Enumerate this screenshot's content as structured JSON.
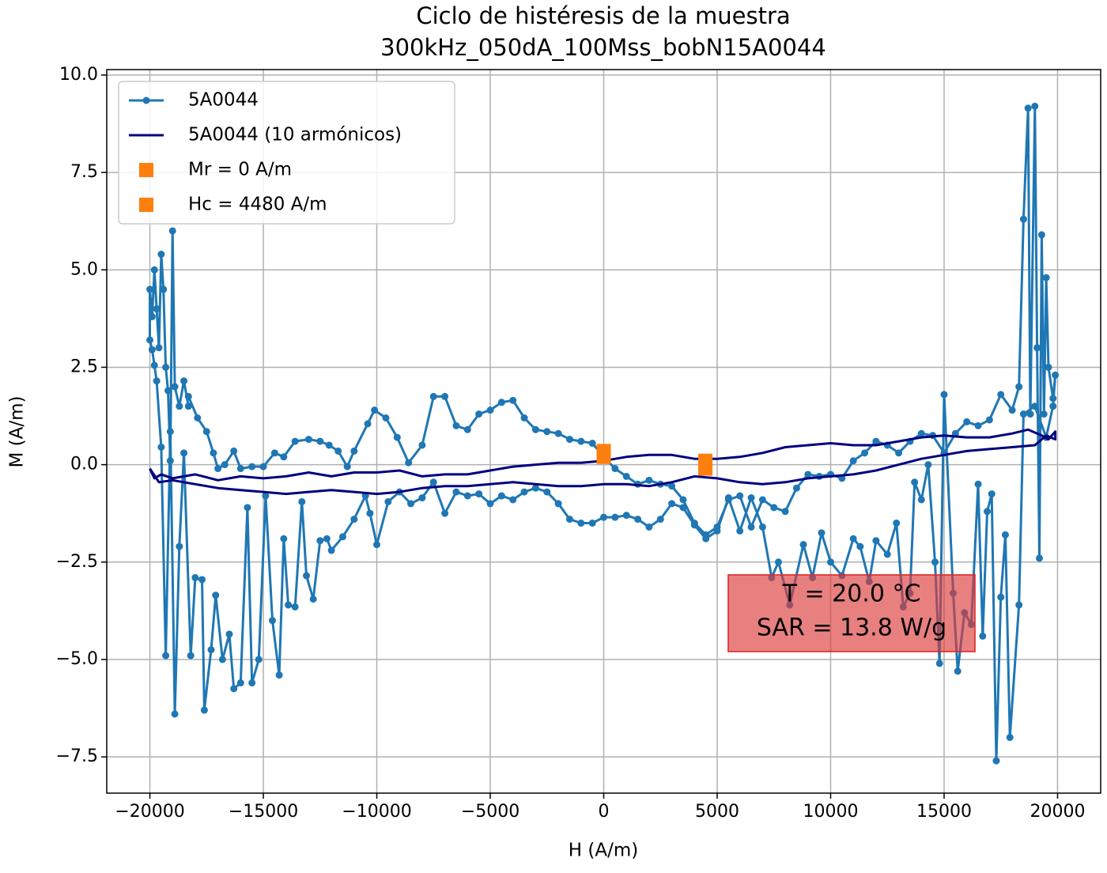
{
  "chart_data": {
    "type": "line",
    "title": "Ciclo de histéresis de la muestra",
    "subtitle": "300kHz_050dA_100Mss_bobN15A0044",
    "xlabel": "H (A/m)",
    "ylabel": "M (A/m)",
    "xlim": [
      -21900,
      21900
    ],
    "ylim": [
      -8.43,
      10.14
    ],
    "xticks": [
      {
        "value": -20000,
        "label": "−20000"
      },
      {
        "value": -15000,
        "label": "−15000"
      },
      {
        "value": -10000,
        "label": "−10000"
      },
      {
        "value": -5000,
        "label": "−5000"
      },
      0,
      5000,
      10000,
      15000,
      20000
    ],
    "yticks": [
      {
        "value": -7.5,
        "label": "−7.5"
      },
      {
        "value": -5,
        "label": "−5.0"
      },
      {
        "value": -2.5,
        "label": "−2.5"
      },
      {
        "value": 0,
        "label": "0.0"
      },
      {
        "value": 2.5,
        "label": "2.5"
      },
      {
        "value": 5,
        "label": "5.0"
      },
      {
        "value": 7.5,
        "label": "7.5"
      },
      {
        "value": 10,
        "label": "10.0"
      }
    ],
    "grid": true,
    "legend": "upper left",
    "annotations": [
      "T = 20.0 °C",
      "SAR = 13.8 W/g"
    ],
    "series": [
      {
        "name": "5A0044",
        "color": "#1f77b4",
        "style": "line-marker",
        "x": [
          -18300,
          -17900,
          -17500,
          -17200,
          -17000,
          -16700,
          -16300,
          -16000,
          -15500,
          -15000,
          -14500,
          -14100,
          -13600,
          -13000,
          -12500,
          -12100,
          -11700,
          -11300,
          -11000,
          -10400,
          -10100,
          -9600,
          -9100,
          -8600,
          -8000,
          -7500,
          -7000,
          -6500,
          -6000,
          -5500,
          -5000,
          -4500,
          -4000,
          -3500,
          -3000,
          -2500,
          -2000,
          -1500,
          -1000,
          -500,
          0,
          500,
          1000,
          1500,
          2000,
          2500,
          3000,
          3500,
          4000,
          4500,
          5000,
          5500,
          6000,
          6500,
          7000,
          7500,
          8000,
          8500,
          9000,
          9500,
          10000,
          10500,
          11000,
          11500,
          12000,
          12500,
          13000,
          13500,
          14000,
          14500,
          15000,
          15500,
          16000,
          16500,
          17000,
          17500,
          18000,
          18300,
          18500,
          18700,
          18800,
          19000,
          19100,
          19200,
          19300,
          19400,
          19500,
          19600,
          19800,
          19900,
          19800,
          19500,
          19000,
          18500,
          18300,
          17900,
          17700,
          17500,
          17300,
          17100,
          16900,
          16700,
          16500,
          16200,
          15900,
          15600,
          15400,
          15000,
          14800,
          14600,
          14300,
          14000,
          13700,
          13500,
          13200,
          12900,
          12500,
          12000,
          11700,
          11300,
          11000,
          10500,
          10000,
          9600,
          9200,
          8800,
          8200,
          7700,
          7400,
          7000,
          6500,
          6000,
          5500,
          5000,
          4500,
          4000,
          3500,
          3000,
          2500,
          2000,
          1500,
          1000,
          500,
          0,
          -500,
          -1000,
          -1500,
          -2000,
          -2500,
          -3000,
          -3500,
          -4000,
          -4500,
          -5000,
          -5500,
          -6000,
          -6500,
          -7000,
          -7500,
          -8000,
          -8500,
          -9000,
          -9500,
          -10000,
          -10300,
          -10500,
          -11000,
          -11500,
          -12000,
          -12200,
          -12500,
          -12800,
          -13100,
          -13300,
          -13600,
          -13900,
          -14100,
          -14300,
          -14600,
          -14900,
          -15200,
          -15500,
          -15700,
          -16000,
          -16300,
          -16500,
          -16800,
          -17100,
          -17300,
          -17600,
          -17700,
          -18000,
          -18200,
          -18500,
          -18700,
          -18900,
          -19100,
          -19300,
          -19500,
          -19700,
          -19800,
          -19900,
          -20000,
          -20000,
          -19900,
          -19800,
          -19700,
          -19600,
          -19500,
          -19400,
          -19300,
          -19200,
          -19100,
          -19000,
          -18900,
          -18700,
          -18500,
          -18300
        ],
        "values": [
          1.75,
          1.2,
          0.85,
          0.3,
          -0.1,
          0.0,
          0.35,
          -0.1,
          -0.05,
          -0.05,
          0.3,
          0.2,
          0.6,
          0.65,
          0.6,
          0.5,
          0.35,
          -0.05,
          0.35,
          1.05,
          1.4,
          1.2,
          0.7,
          0.05,
          0.5,
          1.75,
          1.75,
          1.0,
          0.9,
          1.3,
          1.4,
          1.6,
          1.65,
          1.2,
          0.9,
          0.85,
          0.8,
          0.65,
          0.6,
          0.55,
          0.2,
          -0.1,
          -0.3,
          -0.5,
          -0.4,
          -0.5,
          -0.55,
          -0.9,
          -1.5,
          -1.8,
          -1.6,
          -0.9,
          -0.8,
          -1.6,
          -0.9,
          -1.1,
          -1.2,
          -0.6,
          -0.25,
          -0.3,
          -0.25,
          -0.35,
          0.1,
          0.3,
          0.6,
          0.5,
          0.3,
          0.6,
          0.8,
          0.75,
          0.3,
          0.8,
          1.1,
          1.0,
          1.15,
          1.8,
          1.4,
          2.0,
          6.3,
          9.15,
          1.3,
          9.2,
          3.0,
          -2.4,
          5.9,
          1.3,
          4.8,
          2.5,
          1.7,
          2.3,
          1.5,
          0.7,
          1.5,
          1.3,
          -3.6,
          -7.0,
          -1.8,
          -3.4,
          -7.6,
          -0.75,
          -1.2,
          -4.4,
          -0.5,
          -4.1,
          -3.8,
          -5.3,
          -3.3,
          1.8,
          -5.1,
          -2.5,
          0.0,
          -0.9,
          -0.45,
          -3.3,
          -3.65,
          -1.5,
          -2.3,
          -1.95,
          -3.0,
          -2.1,
          -1.9,
          -2.85,
          -2.5,
          -1.75,
          -2.9,
          -2.05,
          -3.6,
          -2.5,
          -2.9,
          -1.6,
          -0.85,
          -1.7,
          -0.85,
          -1.7,
          -1.9,
          -1.55,
          -1.1,
          -1.0,
          -1.4,
          -1.6,
          -1.4,
          -1.3,
          -1.35,
          -1.35,
          -1.5,
          -1.5,
          -1.4,
          -1.0,
          -0.7,
          -0.6,
          -0.7,
          -0.9,
          -0.8,
          -1.0,
          -0.75,
          -0.8,
          -0.7,
          -1.25,
          -0.45,
          -0.85,
          -1.0,
          -0.7,
          -0.95,
          -2.05,
          -1.25,
          -0.8,
          -1.4,
          -1.85,
          -2.2,
          -1.9,
          -1.95,
          -3.45,
          -2.85,
          -0.95,
          -3.65,
          -3.6,
          -1.9,
          -5.4,
          -4.0,
          -0.8,
          -5.0,
          -5.6,
          -1.1,
          -5.6,
          -5.75,
          -4.35,
          -5.0,
          -3.35,
          -4.75,
          -6.3,
          -2.95,
          -2.9,
          -4.9,
          0.3,
          -2.1,
          -6.4,
          0.85,
          -4.9,
          0.45,
          2.15,
          2.55,
          2.95,
          3.2,
          4.5,
          3.8,
          5.0,
          4.0,
          3.0,
          5.4,
          4.5,
          2.5,
          1.9,
          0.1,
          6.0,
          2.0,
          1.5,
          2.15,
          1.5
        ]
      },
      {
        "name": "5A0044 (10 armónicos)",
        "color": "#000080",
        "style": "line",
        "x": [
          -20000,
          -19800,
          -19500,
          -19000,
          -18000,
          -17000,
          -16000,
          -15000,
          -14000,
          -13000,
          -12000,
          -11000,
          -10000,
          -9000,
          -8000,
          -7000,
          -6000,
          -5000,
          -4000,
          -3000,
          -2000,
          -1000,
          0,
          1000,
          2000,
          3000,
          4000,
          5000,
          6000,
          7000,
          8000,
          9000,
          10000,
          11000,
          12000,
          13000,
          14000,
          15000,
          16000,
          17000,
          18000,
          18700,
          19300,
          19600,
          19900,
          19900,
          19500,
          19000,
          18000,
          17000,
          16000,
          15000,
          14000,
          13000,
          12000,
          11000,
          10000,
          9000,
          8000,
          7000,
          6000,
          5000,
          4000,
          3000,
          2000,
          1000,
          0,
          -1000,
          -2000,
          -3000,
          -4000,
          -5000,
          -6000,
          -7000,
          -8000,
          -9000,
          -10000,
          -11000,
          -12000,
          -13000,
          -14000,
          -15000,
          -16000,
          -17000,
          -18000,
          -19000,
          -19600,
          -20000
        ],
        "values": [
          -0.1,
          -0.35,
          -0.25,
          -0.35,
          -0.25,
          -0.4,
          -0.3,
          -0.35,
          -0.3,
          -0.2,
          -0.3,
          -0.2,
          -0.2,
          -0.15,
          -0.3,
          -0.25,
          -0.25,
          -0.15,
          -0.05,
          0.0,
          0.05,
          0.05,
          0.1,
          0.2,
          0.25,
          0.25,
          0.15,
          0.15,
          0.2,
          0.3,
          0.45,
          0.5,
          0.55,
          0.5,
          0.5,
          0.6,
          0.7,
          0.75,
          0.7,
          0.7,
          0.8,
          0.9,
          0.75,
          0.65,
          0.85,
          0.65,
          0.75,
          0.5,
          0.45,
          0.4,
          0.35,
          0.25,
          0.15,
          0.0,
          -0.15,
          -0.25,
          -0.3,
          -0.35,
          -0.45,
          -0.5,
          -0.45,
          -0.35,
          -0.3,
          -0.45,
          -0.55,
          -0.5,
          -0.5,
          -0.55,
          -0.55,
          -0.5,
          -0.45,
          -0.5,
          -0.55,
          -0.55,
          -0.6,
          -0.7,
          -0.75,
          -0.7,
          -0.65,
          -0.7,
          -0.75,
          -0.7,
          -0.65,
          -0.6,
          -0.5,
          -0.4,
          -0.45,
          -0.1
        ]
      },
      {
        "name": "Mr = 0 A/m",
        "color": "#ff7f0e",
        "style": "square",
        "x": [
          0,
          0
        ],
        "values": [
          0.35,
          0.2
        ]
      },
      {
        "name": "Hc = 4480 A/m",
        "color": "#ff7f0e",
        "style": "square",
        "x": [
          4480,
          4480
        ],
        "values": [
          0.1,
          -0.1
        ]
      }
    ]
  }
}
